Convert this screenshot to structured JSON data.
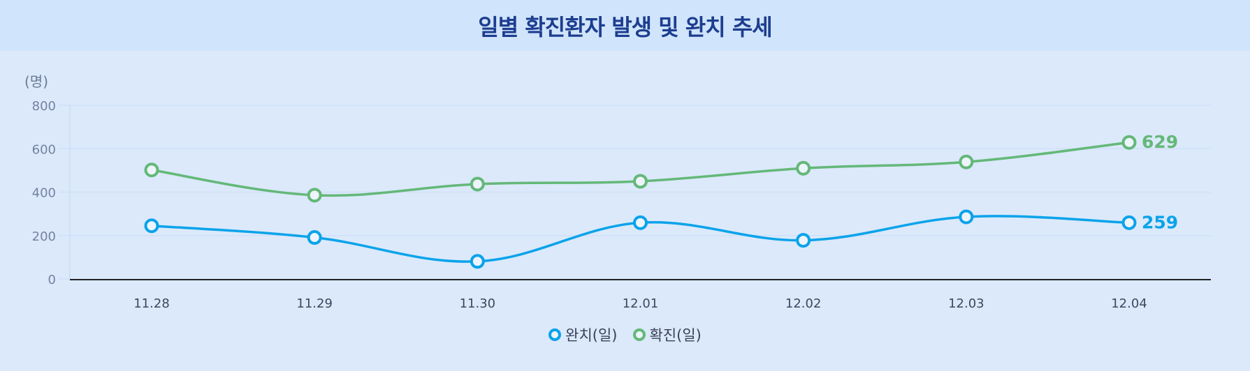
{
  "header": {
    "title": "일별 확진환자 발생 및 완치 추세"
  },
  "chart_data": {
    "type": "line",
    "title": "일별 확진환자 발생 및 완치 추세",
    "ylabel": "(명)",
    "xlabel": "",
    "ylim": [
      0,
      800
    ],
    "yticks": [
      0,
      200,
      400,
      600,
      800
    ],
    "categories": [
      "11.28",
      "11.29",
      "11.30",
      "12.01",
      "12.02",
      "12.03",
      "12.04"
    ],
    "series": [
      {
        "name": "완치(일)",
        "color": "#0aa3ea",
        "values": [
          245,
          191,
          81,
          259,
          178,
          286,
          259
        ],
        "end_label": "259"
      },
      {
        "name": "확진(일)",
        "color": "#64b878",
        "values": [
          502,
          386,
          437,
          450,
          510,
          539,
          629
        ],
        "end_label": "629"
      }
    ],
    "grid": true,
    "legend": "bottom-center"
  }
}
